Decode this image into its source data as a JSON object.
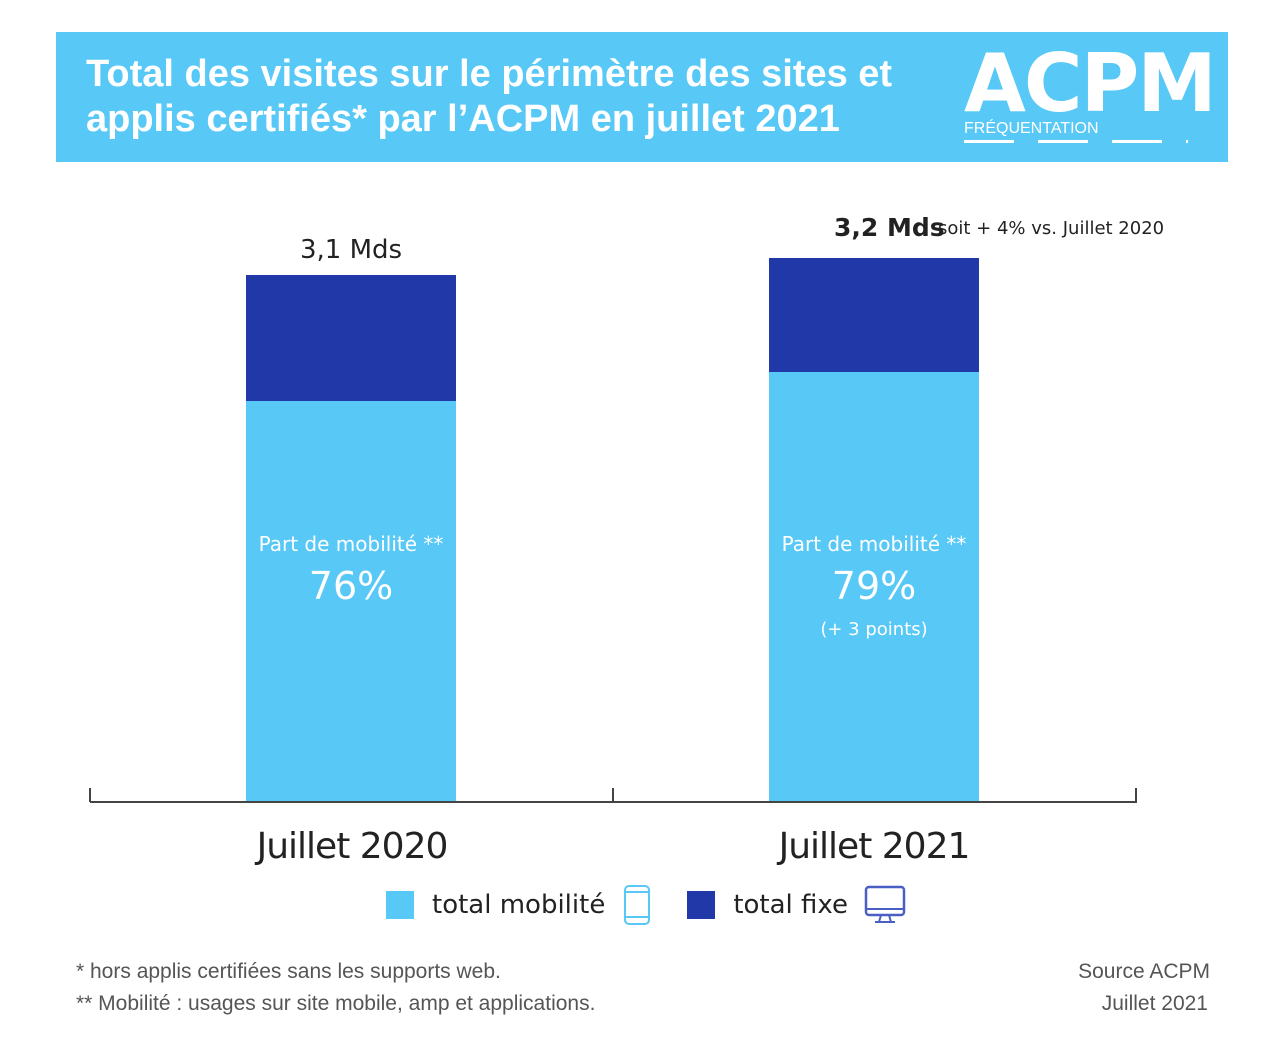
{
  "header": {
    "title_line1": "Total des visites sur le périmètre des sites et",
    "title_line2": "applis certifiés* par l’ACPM en juillet 2021",
    "logo": "ACPM",
    "logo_sub": "FRÉQUENTATION"
  },
  "colors": {
    "banner": "#58c8f6",
    "mobile": "#58c8f6",
    "fixe": "#2139a8"
  },
  "chart_data": {
    "type": "bar",
    "stacked": true,
    "categories": [
      "Juillet 2020",
      "Juillet 2021"
    ],
    "totals": [
      3.1,
      3.2
    ],
    "total_labels": [
      "3,1 Mds",
      "3,2 Mds"
    ],
    "total_note": "soit + 4% vs. Juillet 2020",
    "series": [
      {
        "name": "total mobilité",
        "values": [
          2.356,
          2.528
        ]
      },
      {
        "name": "total fixe",
        "values": [
          0.744,
          0.672
        ]
      }
    ],
    "mobile_share_label": "Part de mobilité **",
    "mobile_share": [
      "76%",
      "79%"
    ],
    "mobile_share_change": "(+ 3 points)",
    "unit": "Mds"
  },
  "footnotes": [
    "* hors applis certifiées sans les supports web.",
    "** Mobilité : usages sur site mobile, amp et applications."
  ],
  "source": [
    "Source ACPM",
    "Juillet 2021"
  ]
}
